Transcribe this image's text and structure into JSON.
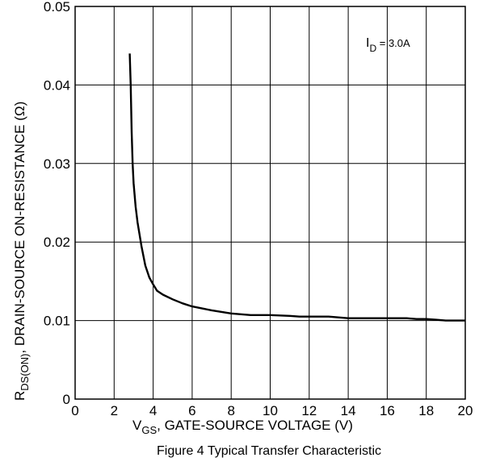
{
  "chart_data": {
    "type": "line",
    "title": "Figure 4 Typical Transfer Characteristic",
    "xlabel": {
      "main": "V",
      "sub": "GS",
      "rest": ", GATE-SOURCE VOLTAGE (V)"
    },
    "ylabel": {
      "main": "R",
      "sub": "DS(ON)",
      "rest": ",  DRAIN-SOURCE ON-RESISTANCE (Ω)"
    },
    "xlim": [
      0,
      20
    ],
    "ylim": [
      0,
      0.05
    ],
    "x_ticks": [
      "0",
      "2",
      "4",
      "6",
      "8",
      "10",
      "12",
      "14",
      "16",
      "18",
      "20"
    ],
    "y_ticks": [
      "0",
      "0.01",
      "0.02",
      "0.03",
      "0.04",
      "0.05"
    ],
    "grid": true,
    "annotation": {
      "main": "I",
      "sub": "D",
      "rest": " = 3.0A"
    },
    "series": [
      {
        "x": [
          2.8,
          2.85,
          2.9,
          2.95,
          3.0,
          3.1,
          3.2,
          3.4,
          3.6,
          3.8,
          4.0,
          4.2,
          4.5,
          5.0,
          5.5,
          6.0,
          7.0,
          8.0,
          9.0,
          10.0,
          11.0,
          11.5,
          12.0,
          13.0,
          13.5,
          14.0,
          15.0,
          16.0,
          17.0,
          17.5,
          18.0,
          18.5,
          19.0,
          20.0
        ],
        "y": [
          0.044,
          0.04,
          0.034,
          0.03,
          0.0275,
          0.0245,
          0.0225,
          0.0195,
          0.017,
          0.0155,
          0.0146,
          0.0138,
          0.0133,
          0.0127,
          0.0122,
          0.0118,
          0.0113,
          0.0109,
          0.0107,
          0.0107,
          0.0106,
          0.0105,
          0.0105,
          0.0105,
          0.0104,
          0.0103,
          0.0103,
          0.0103,
          0.0103,
          0.0102,
          0.0102,
          0.0101,
          0.01,
          0.01
        ]
      }
    ]
  }
}
